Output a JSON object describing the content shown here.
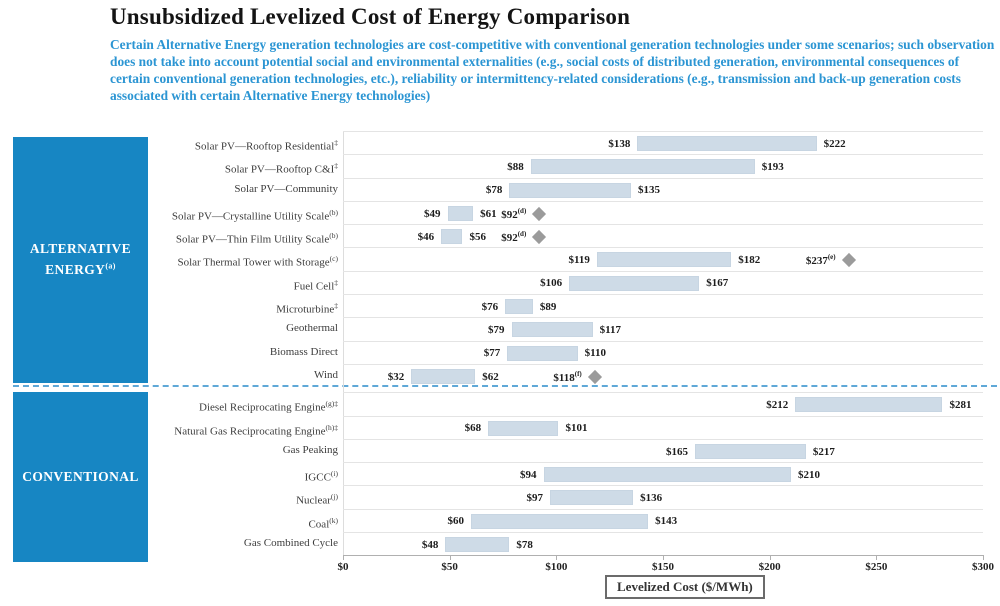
{
  "colors": {
    "group_box_blue": "#1786c3",
    "subtitle_blue": "#2b95d3",
    "bar_fill": "#cedbe7",
    "diamond_gray": "#9b9b9b",
    "divider_dashed_blue": "#5fa8d7"
  },
  "chart_data": {
    "type": "bar",
    "subtype": "horizontal-range-bars",
    "title": "Unsubsidized Levelized Cost of Energy Comparison",
    "subtitle": "Certain Alternative Energy generation technologies are cost-competitive with conventional generation technologies under some scenarios; such observation does not take into account potential social and environmental externalities (e.g., social costs of distributed generation, environmental consequences of certain conventional generation technologies, etc.), reliability or intermittency-related considerations (e.g., transmission and back-up generation costs associated with certain Alternative Energy technologies)",
    "xlabel": "Levelized Cost ($/MWh)",
    "xlim": [
      0,
      300
    ],
    "xtick_values": [
      0,
      50,
      100,
      150,
      200,
      250,
      300
    ],
    "xtick_labels": [
      "$0",
      "$50",
      "$100",
      "$150",
      "$200",
      "$250",
      "$300"
    ],
    "grid": "horizontal-row-separators",
    "legend_position": "none",
    "groups": [
      {
        "label": "ALTERNATIVE ENERGY",
        "sup": "(a)",
        "rows": [
          {
            "label": "Solar PV—Rooftop Residential",
            "sup": "‡",
            "min": 138,
            "max": 222
          },
          {
            "label": "Solar PV—Rooftop C&I",
            "sup": "‡",
            "min": 88,
            "max": 193
          },
          {
            "label": "Solar PV—Community",
            "sup": "",
            "min": 78,
            "max": 135
          },
          {
            "label": "Solar PV—Crystalline Utility Scale",
            "sup": "(b)",
            "min": 49,
            "max": 61,
            "diamond": {
              "value": 92,
              "sup": "(d)"
            }
          },
          {
            "label": "Solar PV—Thin Film Utility Scale",
            "sup": "(b)",
            "min": 46,
            "max": 56,
            "diamond": {
              "value": 92,
              "sup": "(d)"
            }
          },
          {
            "label": "Solar Thermal Tower with Storage",
            "sup": "(c)",
            "min": 119,
            "max": 182,
            "diamond": {
              "value": 237,
              "sup": "(e)"
            }
          },
          {
            "label": "Fuel Cell",
            "sup": "‡",
            "min": 106,
            "max": 167
          },
          {
            "label": "Microturbine",
            "sup": "‡",
            "min": 76,
            "max": 89
          },
          {
            "label": "Geothermal",
            "sup": "",
            "min": 79,
            "max": 117
          },
          {
            "label": "Biomass Direct",
            "sup": "",
            "min": 77,
            "max": 110
          },
          {
            "label": "Wind",
            "sup": "",
            "min": 32,
            "max": 62,
            "diamond": {
              "value": 118,
              "sup": "(f)"
            }
          }
        ]
      },
      {
        "label": "CONVENTIONAL",
        "sup": "",
        "rows": [
          {
            "label": "Diesel Reciprocating Engine",
            "sup": "(g)‡",
            "min": 212,
            "max": 281
          },
          {
            "label": "Natural Gas Reciprocating Engine",
            "sup": "(h)‡",
            "min": 68,
            "max": 101
          },
          {
            "label": "Gas Peaking",
            "sup": "",
            "min": 165,
            "max": 217
          },
          {
            "label": "IGCC",
            "sup": "(i)",
            "min": 94,
            "max": 210
          },
          {
            "label": "Nuclear",
            "sup": "(j)",
            "min": 97,
            "max": 136
          },
          {
            "label": "Coal",
            "sup": "(k)",
            "min": 60,
            "max": 143
          },
          {
            "label": "Gas Combined Cycle",
            "sup": "",
            "min": 48,
            "max": 78
          }
        ]
      }
    ]
  }
}
